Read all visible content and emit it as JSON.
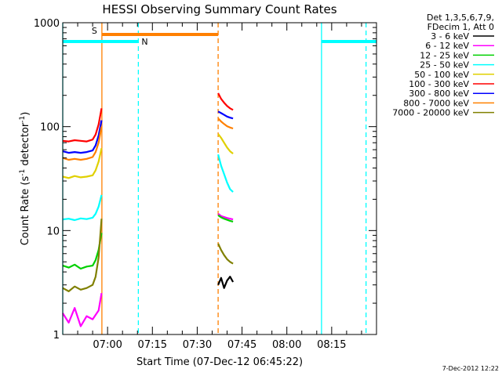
{
  "chart_data": {
    "type": "line",
    "title": "HESSI Observing Summary Count Rates",
    "xlabel": "Start Time (07-Dec-12 06:45:22)",
    "ylabel": "Count Rate (s⁻¹ detector⁻¹)",
    "ylabel_main": "Count Rate (s",
    "ylabel_sup1": "-1",
    "ylabel_mid": " detector",
    "ylabel_sup2": "-1",
    "ylabel_end": ")",
    "y_scale": "log",
    "ylim": [
      1,
      1000
    ],
    "xlim_minutes_after_0645": [
      0,
      105
    ],
    "x_ticks": [
      "07:00",
      "07:15",
      "07:30",
      "07:45",
      "08:00",
      "08:15"
    ],
    "y_ticks": [
      "1",
      "10",
      "100",
      "1000"
    ],
    "grid": false,
    "legend": {
      "placement": "top-right outside",
      "header": [
        "Det 1,3,5,6,7,9,",
        "FDecim 1, Att 0"
      ]
    },
    "series": [
      {
        "name": "3 - 6 keV",
        "color": "#000000",
        "segments": [
          [
            [
              52,
              3.0
            ],
            [
              53,
              3.5
            ],
            [
              54,
              2.8
            ],
            [
              55,
              3.3
            ],
            [
              56,
              3.6
            ],
            [
              57,
              3.2
            ]
          ]
        ]
      },
      {
        "name": "6 - 12 keV",
        "color": "#ff00ff",
        "segments": [
          [
            [
              0,
              1.6
            ],
            [
              2,
              1.3
            ],
            [
              4,
              1.8
            ],
            [
              6,
              1.2
            ],
            [
              8,
              1.5
            ],
            [
              10,
              1.4
            ],
            [
              12,
              1.7
            ],
            [
              13,
              2.5
            ]
          ],
          [
            [
              52,
              14.5
            ],
            [
              53,
              13.8
            ],
            [
              54,
              13.5
            ],
            [
              55,
              13.2
            ],
            [
              56,
              13.0
            ],
            [
              57,
              12.8
            ]
          ]
        ]
      },
      {
        "name": "12 - 25 keV",
        "color": "#00d000",
        "segments": [
          [
            [
              0,
              4.6
            ],
            [
              2,
              4.4
            ],
            [
              4,
              4.7
            ],
            [
              6,
              4.3
            ],
            [
              8,
              4.5
            ],
            [
              10,
              4.6
            ],
            [
              11,
              5.2
            ],
            [
              12,
              6.5
            ],
            [
              13,
              9.5
            ]
          ],
          [
            [
              52,
              14.0
            ],
            [
              53,
              13.4
            ],
            [
              54,
              13.0
            ],
            [
              55,
              12.7
            ],
            [
              56,
              12.4
            ],
            [
              57,
              12.2
            ]
          ]
        ]
      },
      {
        "name": "25 - 50 keV",
        "color": "#00ffff",
        "segments": [
          [
            [
              0,
              12.8
            ],
            [
              2,
              13.0
            ],
            [
              4,
              12.6
            ],
            [
              6,
              13.1
            ],
            [
              8,
              12.9
            ],
            [
              10,
              13.3
            ],
            [
              11,
              14.5
            ],
            [
              12,
              17
            ],
            [
              13,
              22
            ]
          ],
          [
            [
              52,
              54
            ],
            [
              53,
              42
            ],
            [
              54,
              35
            ],
            [
              55,
              29
            ],
            [
              56,
              25
            ],
            [
              57,
              23.5
            ]
          ]
        ]
      },
      {
        "name": "50 - 100 keV",
        "color": "#e0d000",
        "segments": [
          [
            [
              0,
              33
            ],
            [
              2,
              32
            ],
            [
              4,
              33.5
            ],
            [
              6,
              32.5
            ],
            [
              8,
              33
            ],
            [
              10,
              34
            ],
            [
              11,
              38
            ],
            [
              12,
              46
            ],
            [
              13,
              62
            ]
          ],
          [
            [
              52,
              85
            ],
            [
              53,
              78
            ],
            [
              54,
              70
            ],
            [
              55,
              63
            ],
            [
              56,
              58
            ],
            [
              57,
              55
            ]
          ]
        ]
      },
      {
        "name": "100 - 300 keV",
        "color": "#ff0000",
        "segments": [
          [
            [
              0,
              73
            ],
            [
              2,
              72
            ],
            [
              4,
              74
            ],
            [
              6,
              73
            ],
            [
              8,
              72
            ],
            [
              10,
              75
            ],
            [
              11,
              84
            ],
            [
              12,
              105
            ],
            [
              13,
              150
            ]
          ],
          [
            [
              52,
              210
            ],
            [
              53,
              185
            ],
            [
              54,
              170
            ],
            [
              55,
              158
            ],
            [
              56,
              150
            ],
            [
              57,
              145
            ]
          ]
        ]
      },
      {
        "name": "300 - 800 keV",
        "color": "#0000ff",
        "segments": [
          [
            [
              0,
              58
            ],
            [
              2,
              56
            ],
            [
              4,
              57
            ],
            [
              6,
              56
            ],
            [
              8,
              57
            ],
            [
              10,
              59
            ],
            [
              11,
              66
            ],
            [
              12,
              82
            ],
            [
              13,
              115
            ]
          ],
          [
            [
              52,
              140
            ],
            [
              53,
              135
            ],
            [
              54,
              130
            ],
            [
              55,
              125
            ],
            [
              56,
              122
            ],
            [
              57,
              120
            ]
          ]
        ]
      },
      {
        "name": "800 - 7000 keV",
        "color": "#ff8000",
        "segments": [
          [
            [
              0,
              50
            ],
            [
              2,
              48
            ],
            [
              4,
              49
            ],
            [
              6,
              48
            ],
            [
              8,
              49
            ],
            [
              10,
              51
            ],
            [
              11,
              57
            ],
            [
              12,
              70
            ],
            [
              13,
              100
            ]
          ],
          [
            [
              52,
              120
            ],
            [
              53,
              112
            ],
            [
              54,
              106
            ],
            [
              55,
              101
            ],
            [
              56,
              98
            ],
            [
              57,
              96
            ]
          ]
        ]
      },
      {
        "name": "7000 - 20000 keV",
        "color": "#808000",
        "segments": [
          [
            [
              0,
              2.8
            ],
            [
              2,
              2.6
            ],
            [
              4,
              2.9
            ],
            [
              6,
              2.7
            ],
            [
              8,
              2.8
            ],
            [
              10,
              3.0
            ],
            [
              11,
              3.6
            ],
            [
              12,
              5.5
            ],
            [
              13,
              13
            ]
          ],
          [
            [
              52,
              7.5
            ],
            [
              53,
              6.5
            ],
            [
              54,
              5.8
            ],
            [
              55,
              5.3
            ],
            [
              56,
              5.0
            ],
            [
              57,
              4.8
            ]
          ]
        ]
      }
    ],
    "annotations": {
      "saa_label": "S",
      "night_label": "N",
      "saa_level": 770,
      "night_level": 660,
      "saa_interval_min": [
        13.1,
        52.0
      ],
      "night_intervals_min": [
        [
          0,
          25.3
        ],
        [
          86.6,
          105
        ]
      ],
      "solid_lines": [
        {
          "x": 13.1,
          "color": "#ff8000"
        },
        {
          "x": 0,
          "color": "#00ffff"
        },
        {
          "x": 86.6,
          "color": "#00ffff"
        }
      ],
      "dashed_lines": [
        {
          "x": 25.3,
          "color": "#00ffff"
        },
        {
          "x": 52.0,
          "color": "#ff8000"
        },
        {
          "x": 101.5,
          "color": "#00ffff"
        }
      ]
    }
  },
  "footer": {
    "date_stamp": "7-Dec-2012 12:22"
  }
}
